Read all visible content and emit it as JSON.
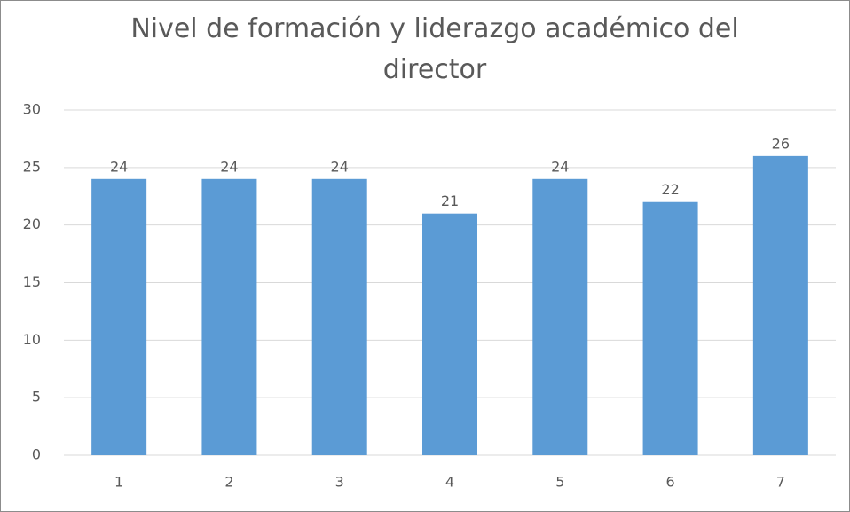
{
  "chart_data": {
    "type": "bar",
    "title": "Nivel de formación y liderazgo académico del director",
    "categories": [
      "1",
      "2",
      "3",
      "4",
      "5",
      "6",
      "7"
    ],
    "values": [
      24,
      24,
      24,
      21,
      24,
      22,
      26
    ],
    "color": "#5b9bd5",
    "ylim": [
      0,
      30
    ],
    "yticks": [
      0,
      5,
      10,
      15,
      20,
      25,
      30
    ],
    "grid": true
  }
}
